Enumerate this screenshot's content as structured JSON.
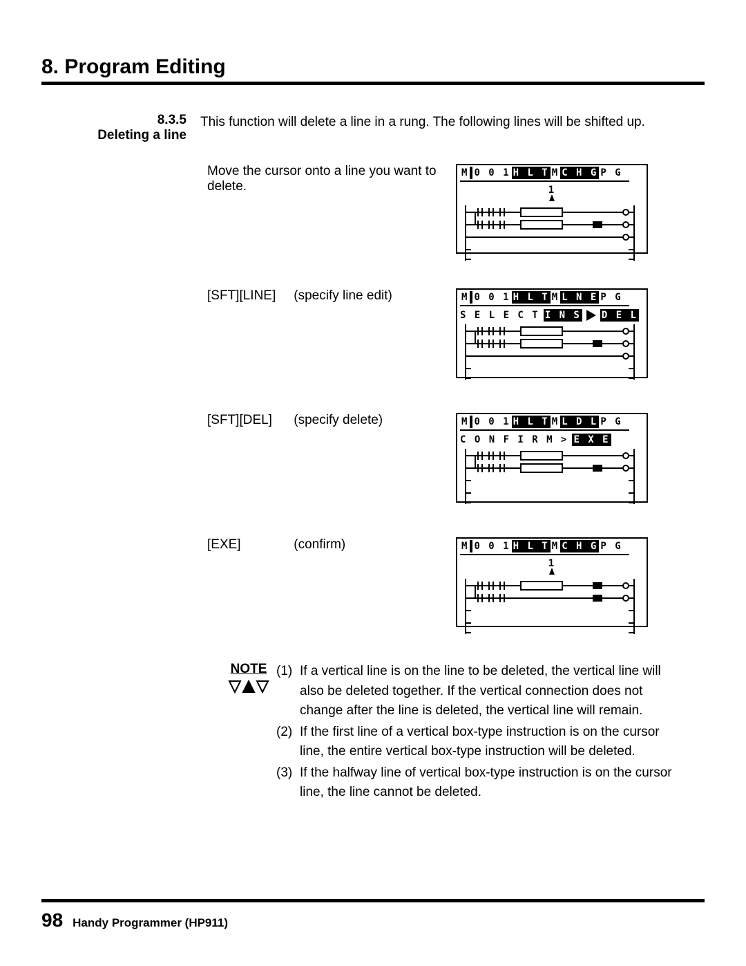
{
  "chapter": {
    "num": "8.",
    "title": "Program Editing"
  },
  "section": {
    "num": "8.3.5",
    "label": "Deleting a line",
    "desc": "This function will delete a line in a rung. The following lines will be shifted up."
  },
  "steps": [
    {
      "text": "Move the cursor onto a line you want to delete.",
      "screen": {
        "title_segments": [
          {
            "t": "M",
            "inv": false
          },
          {
            "t": " ",
            "inv": true
          },
          {
            "t": "0 0 1",
            "inv": false
          },
          {
            "t": "H L T",
            "inv": true
          },
          {
            "t": "M",
            "inv": false
          },
          {
            "t": "C H G",
            "inv": true
          },
          {
            "t": "P G",
            "inv": false
          }
        ],
        "sub": {
          "type": "cursor",
          "label": "1"
        },
        "rungs": 3
      }
    },
    {
      "keys": "[SFT][LINE]",
      "action": "(specify line edit)",
      "screen": {
        "title_segments": [
          {
            "t": "M",
            "inv": false
          },
          {
            "t": " ",
            "inv": true
          },
          {
            "t": "0 0 1",
            "inv": false
          },
          {
            "t": "H L T",
            "inv": true
          },
          {
            "t": "M",
            "inv": false
          },
          {
            "t": "L N E",
            "inv": true
          },
          {
            "t": "P G",
            "inv": false
          }
        ],
        "sub": {
          "type": "select",
          "label": "S E L E C T",
          "opts": [
            "I N S",
            "D E L"
          ]
        },
        "rungs": 3
      }
    },
    {
      "keys": "[SFT][DEL]",
      "action": "(specify delete)",
      "screen": {
        "title_segments": [
          {
            "t": "M",
            "inv": false
          },
          {
            "t": " ",
            "inv": true
          },
          {
            "t": "0 0 1",
            "inv": false
          },
          {
            "t": "H L T",
            "inv": true
          },
          {
            "t": "M",
            "inv": false
          },
          {
            "t": "L D L",
            "inv": true
          },
          {
            "t": "P G",
            "inv": false
          }
        ],
        "sub": {
          "type": "confirm",
          "label": "C O N F I R M   >",
          "btn": "E X E"
        },
        "rungs": 2,
        "merged": true
      }
    },
    {
      "keys": "[EXE]",
      "action": "(confirm)",
      "screen": {
        "title_segments": [
          {
            "t": "M",
            "inv": false
          },
          {
            "t": " ",
            "inv": true
          },
          {
            "t": "0 0 1",
            "inv": false
          },
          {
            "t": "H L T",
            "inv": true
          },
          {
            "t": "M",
            "inv": false
          },
          {
            "t": "C H G",
            "inv": true
          },
          {
            "t": "P G",
            "inv": false
          }
        ],
        "sub": {
          "type": "cursor",
          "label": "1"
        },
        "rungs": 2,
        "shifted": true
      }
    }
  ],
  "note": {
    "label": "NOTE",
    "items": [
      {
        "n": "(1)",
        "t": "If a vertical line is on the line to be deleted, the vertical line will also be deleted together. If the vertical connection does not change after the line is deleted, the vertical line will remain."
      },
      {
        "n": "(2)",
        "t": "If the first line of a vertical box-type instruction is on the cursor line, the entire vertical box-type instruction will be deleted."
      },
      {
        "n": "(3)",
        "t": "If the halfway line of vertical box-type instruction is on the cursor line, the line cannot be deleted."
      }
    ]
  },
  "footer": {
    "page": "98",
    "text": "Handy Programmer (HP911)"
  }
}
